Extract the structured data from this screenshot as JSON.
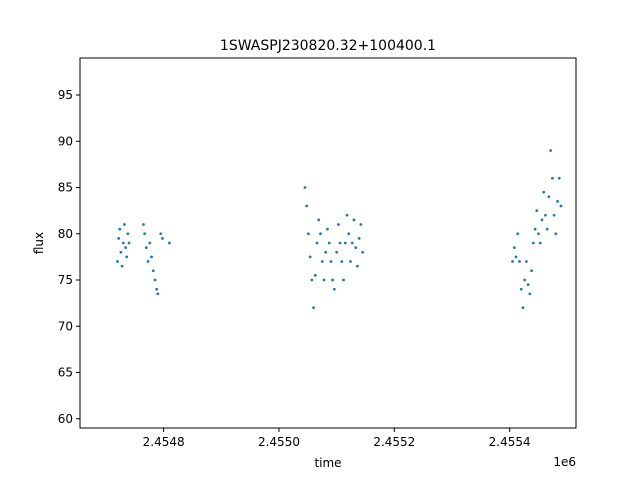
{
  "chart_data": {
    "type": "scatter",
    "title": "1SWASPJ230820.32+100400.1",
    "xlabel": "time",
    "ylabel": "flux",
    "x_offset_label": "1e6",
    "xlim": [
      2454655,
      2455515
    ],
    "ylim": [
      59,
      99
    ],
    "x_ticks": [
      2454800,
      2455000,
      2455200,
      2455400
    ],
    "x_tick_labels": [
      "2.4548",
      "2.4550",
      "2.4552",
      "2.4554"
    ],
    "y_ticks": [
      60,
      65,
      70,
      75,
      80,
      85,
      90,
      95
    ],
    "y_tick_labels": [
      "60",
      "65",
      "70",
      "75",
      "80",
      "85",
      "90",
      "95"
    ],
    "grid": false,
    "marker_color": "#1f77b4",
    "series": [
      {
        "values": [
          [
            2454720,
            77.0
          ],
          [
            2454722,
            79.5
          ],
          [
            2454724,
            80.5
          ],
          [
            2454726,
            78.0
          ],
          [
            2454728,
            76.5
          ],
          [
            2454730,
            79.0
          ],
          [
            2454732,
            81.0
          ],
          [
            2454734,
            78.5
          ],
          [
            2454736,
            77.5
          ],
          [
            2454738,
            80.0
          ],
          [
            2454740,
            79.0
          ],
          [
            2454765,
            81.0
          ],
          [
            2454767,
            80.0
          ],
          [
            2454770,
            78.5
          ],
          [
            2454773,
            77.0
          ],
          [
            2454776,
            79.0
          ],
          [
            2454779,
            77.5
          ],
          [
            2454782,
            76.0
          ],
          [
            2454785,
            75.0
          ],
          [
            2454788,
            74.0
          ],
          [
            2454790,
            73.5
          ],
          [
            2454795,
            80.0
          ],
          [
            2454798,
            79.5
          ],
          [
            2454810,
            79.0
          ],
          [
            2455045,
            85.0
          ],
          [
            2455048,
            83.0
          ],
          [
            2455051,
            80.0
          ],
          [
            2455054,
            77.5
          ],
          [
            2455057,
            75.0
          ],
          [
            2455060,
            72.0
          ],
          [
            2455063,
            75.5
          ],
          [
            2455066,
            79.0
          ],
          [
            2455069,
            81.5
          ],
          [
            2455072,
            80.0
          ],
          [
            2455075,
            77.0
          ],
          [
            2455078,
            75.0
          ],
          [
            2455081,
            78.0
          ],
          [
            2455084,
            80.5
          ],
          [
            2455087,
            79.0
          ],
          [
            2455090,
            77.0
          ],
          [
            2455093,
            75.0
          ],
          [
            2455096,
            74.0
          ],
          [
            2455100,
            78.0
          ],
          [
            2455103,
            81.0
          ],
          [
            2455106,
            79.0
          ],
          [
            2455109,
            77.0
          ],
          [
            2455112,
            75.0
          ],
          [
            2455115,
            79.0
          ],
          [
            2455118,
            82.0
          ],
          [
            2455121,
            80.0
          ],
          [
            2455124,
            77.0
          ],
          [
            2455127,
            79.0
          ],
          [
            2455130,
            81.5
          ],
          [
            2455133,
            78.5
          ],
          [
            2455136,
            76.5
          ],
          [
            2455139,
            79.5
          ],
          [
            2455142,
            81.0
          ],
          [
            2455145,
            78.0
          ],
          [
            2455405,
            77.0
          ],
          [
            2455408,
            78.5
          ],
          [
            2455411,
            77.5
          ],
          [
            2455414,
            80.0
          ],
          [
            2455417,
            77.0
          ],
          [
            2455420,
            74.0
          ],
          [
            2455423,
            72.0
          ],
          [
            2455426,
            75.0
          ],
          [
            2455429,
            77.0
          ],
          [
            2455432,
            74.5
          ],
          [
            2455435,
            73.5
          ],
          [
            2455438,
            76.0
          ],
          [
            2455441,
            79.0
          ],
          [
            2455444,
            80.5
          ],
          [
            2455447,
            82.5
          ],
          [
            2455450,
            80.0
          ],
          [
            2455453,
            79.0
          ],
          [
            2455456,
            81.5
          ],
          [
            2455459,
            84.5
          ],
          [
            2455462,
            82.0
          ],
          [
            2455465,
            80.5
          ],
          [
            2455468,
            84.0
          ],
          [
            2455471,
            89.0
          ],
          [
            2455474,
            86.0
          ],
          [
            2455477,
            82.0
          ],
          [
            2455480,
            80.0
          ],
          [
            2455483,
            83.5
          ],
          [
            2455486,
            86.0
          ],
          [
            2455489,
            83.0
          ]
        ]
      }
    ]
  }
}
